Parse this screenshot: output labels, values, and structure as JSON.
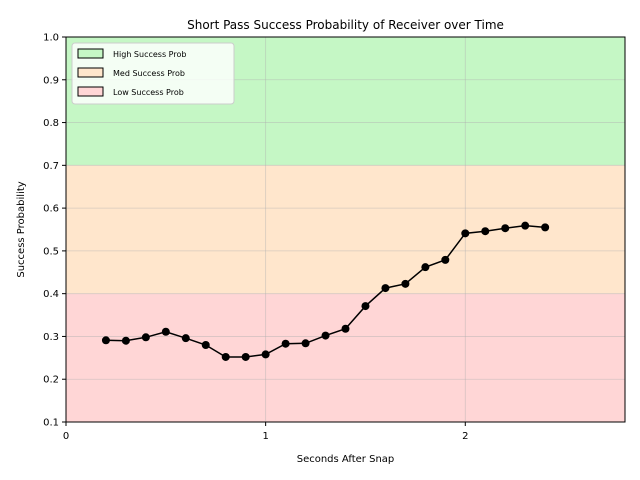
{
  "chart_data": {
    "type": "line",
    "title": "Short Pass Success Probability of Receiver over Time",
    "xlabel": "Seconds After Snap",
    "ylabel": "Success Probability",
    "xlim": [
      0,
      2.8
    ],
    "ylim": [
      0.1,
      1.0
    ],
    "x_ticks": [
      "0",
      "1",
      "2"
    ],
    "x_tick_values": [
      0,
      1,
      2
    ],
    "y_ticks": [
      "0.1",
      "0.2",
      "0.3",
      "0.4",
      "0.5",
      "0.6",
      "0.7",
      "0.8",
      "0.9",
      "1.0"
    ],
    "y_tick_values": [
      0.1,
      0.2,
      0.3,
      0.4,
      0.5,
      0.6,
      0.7,
      0.8,
      0.9,
      1.0
    ],
    "grid": true,
    "legend_position": "top-left",
    "bands": [
      {
        "label": "High Success Prob",
        "from": 0.7,
        "to": 1.0,
        "color": "#c5f7c5"
      },
      {
        "label": "Med Success Prob",
        "from": 0.4,
        "to": 0.7,
        "color": "#ffe6cc"
      },
      {
        "label": "Low Success Prob",
        "from": 0.1,
        "to": 0.4,
        "color": "#ffd6d6"
      }
    ],
    "series": [
      {
        "color": "#000000",
        "x": [
          0.2,
          0.3,
          0.4,
          0.5,
          0.6,
          0.7,
          0.8,
          0.9,
          1.0,
          1.1,
          1.2,
          1.3,
          1.4,
          1.5,
          1.6,
          1.7,
          1.8,
          1.9,
          2.0,
          2.1,
          2.2,
          2.3,
          2.4
        ],
        "y": [
          0.291,
          0.29,
          0.298,
          0.311,
          0.296,
          0.28,
          0.252,
          0.252,
          0.258,
          0.283,
          0.284,
          0.302,
          0.318,
          0.371,
          0.413,
          0.423,
          0.462,
          0.479,
          0.541,
          0.546,
          0.553,
          0.559,
          0.555
        ]
      }
    ]
  }
}
